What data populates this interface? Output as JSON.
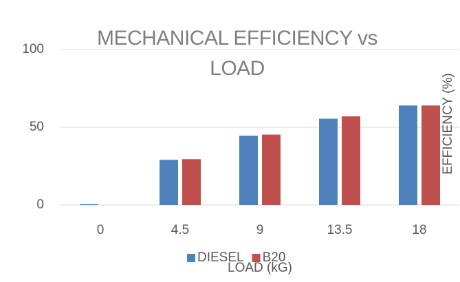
{
  "chart_data": {
    "type": "bar",
    "title": "MECHANICAL EFFICIENCY vs LOAD",
    "x_label": "LOAD (kG)",
    "y_label": "EFFICIENCY  (%)",
    "categories": [
      "0",
      "4.5",
      "9",
      "13.5",
      "18"
    ],
    "series": [
      {
        "name": "DIESEL",
        "color": "#4f81bd",
        "values": [
          0.5,
          29,
          44.5,
          55.5,
          64
        ]
      },
      {
        "name": "B20",
        "color": "#c0504d",
        "values": [
          0,
          29.5,
          45.3,
          57,
          64
        ]
      }
    ],
    "ylim": [
      0,
      100
    ],
    "yticks": [
      0,
      50,
      100
    ],
    "grid": true,
    "legend": "bottom"
  }
}
